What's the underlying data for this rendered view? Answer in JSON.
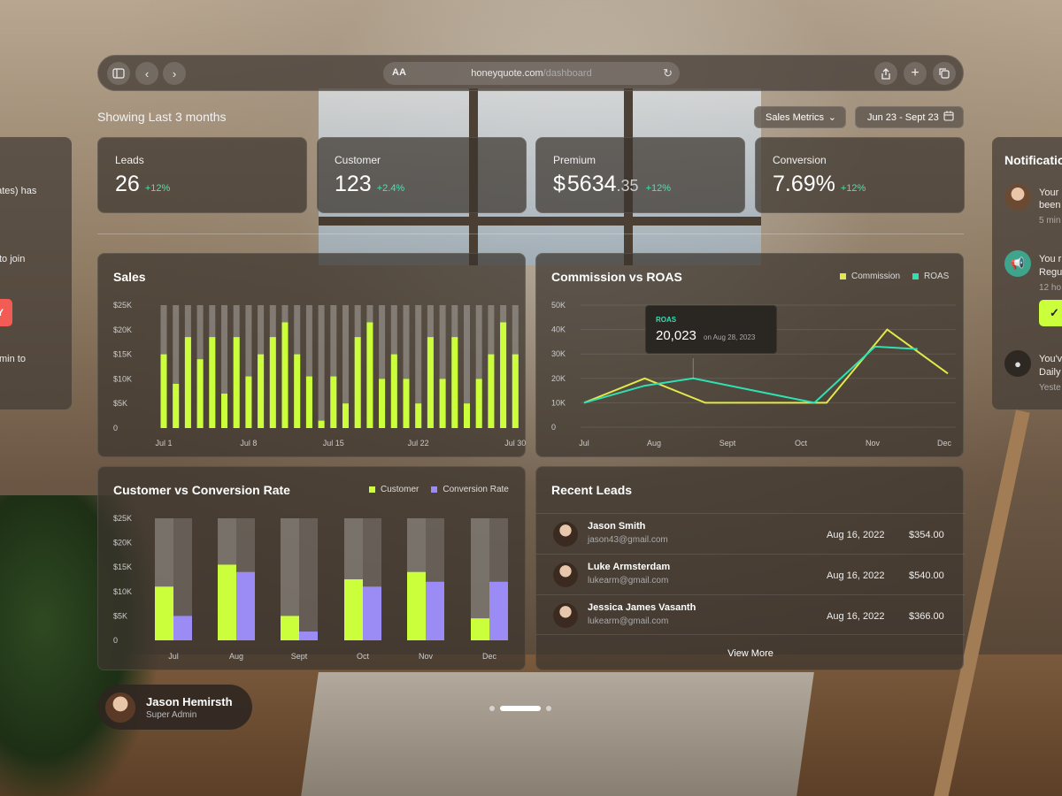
{
  "browser": {
    "url_aa": "AA",
    "url_domain": "honeyquote.com",
    "url_path": "/dashboard"
  },
  "header": {
    "showing": "Showing Last 3 months",
    "metric_select": "Sales Metrics",
    "date_range": "Jun 23 - Sept 23"
  },
  "stats": [
    {
      "label": "Leads",
      "value": "26",
      "delta": "+12%"
    },
    {
      "label": "Customer",
      "value": "123",
      "delta": "+2.4%"
    },
    {
      "label": "Premium",
      "prefix": "$",
      "value": "5634",
      "decimal": ".35",
      "delta": "+12%"
    },
    {
      "label": "Conversion",
      "value": "7.69%",
      "delta": "+12%"
    }
  ],
  "sales": {
    "title": "Sales"
  },
  "commission": {
    "title": "Commission vs ROAS",
    "legend": [
      "Commission",
      "ROAS"
    ],
    "tooltip": {
      "label": "ROAS",
      "value": "20,023",
      "date": "on Aug 28, 2023"
    }
  },
  "cvr": {
    "title": "Customer vs Conversion Rate",
    "legend": [
      "Customer",
      "Conversion Rate"
    ]
  },
  "leads": {
    "title": "Recent Leads",
    "rows": [
      {
        "name": "Jason Smith",
        "email": "jason43@gmail.com",
        "date": "Aug 16, 2022",
        "amount": "$354.00"
      },
      {
        "name": "Luke Armsterdam",
        "email": "lukearm@gmail.com",
        "date": "Aug 16, 2022",
        "amount": "$540.00"
      },
      {
        "name": "Jessica James Vasanth",
        "email": "lukearm@gmail.com",
        "date": "Aug 16, 2022",
        "amount": "$366.00"
      }
    ],
    "view_more": "View More"
  },
  "profile": {
    "name": "Jason Hemirsth",
    "role": "Super Admin"
  },
  "left_panel": {
    "line1": "dates) has",
    "line2": "to join",
    "button": "NY",
    "line3": "min to"
  },
  "notifications": {
    "title": "Notifications",
    "items": [
      {
        "text": "Your",
        "text2": "been",
        "sub": "5 min"
      },
      {
        "text": "You r",
        "text2": "Regu",
        "sub": "12 ho"
      },
      {
        "text": "You'v",
        "text2": "Daily",
        "sub": "Yeste"
      }
    ]
  },
  "colors": {
    "lime": "#CBFF3C",
    "teal": "#2FE0B4",
    "purple": "#9B8CF5",
    "yellow": "#E2E84A"
  },
  "chart_data": [
    {
      "type": "bar",
      "title": "Sales",
      "categories": [
        "Jul 1",
        "Jul 2",
        "Jul 3",
        "Jul 4",
        "Jul 5",
        "Jul 6",
        "Jul 7",
        "Jul 8",
        "Jul 9",
        "Jul 10",
        "Jul 11",
        "Jul 12",
        "Jul 13",
        "Jul 14",
        "Jul 15",
        "Jul 16",
        "Jul 17",
        "Jul 18",
        "Jul 19",
        "Jul 20",
        "Jul 21",
        "Jul 22",
        "Jul 23",
        "Jul 24",
        "Jul 25",
        "Jul 26",
        "Jul 27",
        "Jul 28",
        "Jul 29",
        "Jul 30"
      ],
      "x_tick_labels": [
        "Jul 1",
        "Jul 8",
        "Jul 15",
        "Jul 22",
        "Jul 30"
      ],
      "y_tick_labels": [
        "$25K",
        "$20K",
        "$15K",
        "$10K",
        "$5K",
        "0"
      ],
      "series": [
        {
          "values": [
            15000,
            9000,
            18500,
            14000,
            18500,
            7000,
            18500,
            10500,
            15000,
            18500,
            21500,
            15000,
            10500,
            1500,
            10500,
            5000,
            18500,
            21500,
            10000,
            15000,
            10000,
            5000,
            18500,
            10000,
            18500,
            5000,
            10000,
            15000,
            21500,
            15000
          ]
        },
        {
          "values": [
            25000,
            25000,
            25000,
            25000,
            25000,
            25000,
            25000,
            25000,
            25000,
            25000,
            25000,
            25000,
            25000,
            25000,
            25000,
            25000,
            25000,
            25000,
            25000,
            25000,
            25000,
            25000,
            25000,
            25000,
            25000,
            25000,
            25000,
            25000,
            25000,
            25000
          ]
        }
      ],
      "ylim": [
        0,
        25000
      ]
    },
    {
      "type": "line",
      "title": "Commission vs ROAS",
      "categories": [
        "Jul",
        "Aug",
        "Sept",
        "Oct",
        "Nov",
        "Dec"
      ],
      "y_tick_labels": [
        "50K",
        "40K",
        "30K",
        "20K",
        "10K",
        "0"
      ],
      "series": [
        {
          "name": "Commission",
          "x": [
            0,
            1,
            2,
            3,
            4,
            5,
            6
          ],
          "values": [
            10000,
            20000,
            10000,
            10000,
            10000,
            40000,
            22000
          ]
        },
        {
          "name": "ROAS",
          "x": [
            0,
            1,
            1.8,
            2.8,
            3.8,
            4.8,
            5.5
          ],
          "values": [
            10000,
            17000,
            20023,
            15000,
            10000,
            33000,
            32000
          ]
        }
      ],
      "ylim": [
        0,
        50000
      ]
    },
    {
      "type": "bar",
      "title": "Customer vs Conversion Rate",
      "categories": [
        "Jul",
        "Aug",
        "Sept",
        "Oct",
        "Nov",
        "Dec"
      ],
      "y_tick_labels": [
        "$25K",
        "$20K",
        "$15K",
        "$10K",
        "$5K",
        "0"
      ],
      "series": [
        {
          "name": "Customer",
          "values": [
            11000,
            15500,
            5000,
            12500,
            14000,
            4500
          ]
        },
        {
          "name": "Conversion Rate",
          "values": [
            5000,
            14000,
            1800,
            11000,
            12000,
            12000
          ]
        }
      ],
      "ylim": [
        0,
        25000
      ]
    }
  ]
}
